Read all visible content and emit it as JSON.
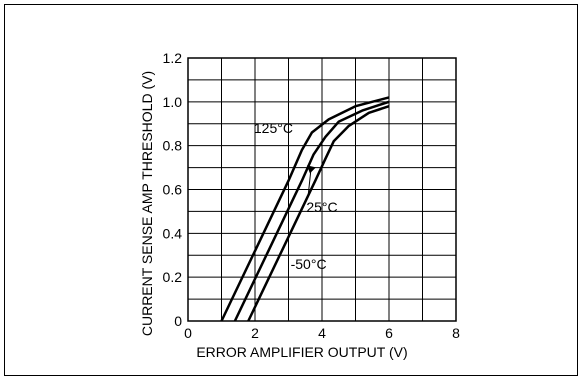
{
  "chart_data": {
    "type": "line",
    "title": "",
    "xlabel": "ERROR AMPLIFIER OUTPUT (V)",
    "ylabel": "CURRENT SENSE AMP THRESHOLD (V)",
    "xlim": [
      0,
      8
    ],
    "ylim": [
      0,
      1.2
    ],
    "x_ticks": [
      "0",
      "2",
      "4",
      "6",
      "8"
    ],
    "y_ticks": [
      "0",
      "0.2",
      "0.4",
      "0.6",
      "0.8",
      "1.0",
      "1.2"
    ],
    "grid": true,
    "series": [
      {
        "name": "125°C",
        "points": [
          [
            1.0,
            0
          ],
          [
            2.0,
            0.32
          ],
          [
            3.0,
            0.64
          ],
          [
            3.4,
            0.78
          ],
          [
            3.7,
            0.86
          ],
          [
            4.2,
            0.92
          ],
          [
            5.0,
            0.98
          ],
          [
            6.0,
            1.02
          ]
        ]
      },
      {
        "name": "25°C",
        "points": [
          [
            1.4,
            0
          ],
          [
            2.4,
            0.32
          ],
          [
            3.4,
            0.64
          ],
          [
            3.75,
            0.76
          ],
          [
            4.1,
            0.84
          ],
          [
            4.5,
            0.91
          ],
          [
            5.2,
            0.96
          ],
          [
            6.0,
            1.0
          ]
        ]
      },
      {
        "name": "-50°C",
        "points": [
          [
            1.8,
            0
          ],
          [
            2.8,
            0.32
          ],
          [
            3.8,
            0.64
          ],
          [
            4.1,
            0.74
          ],
          [
            4.35,
            0.82
          ],
          [
            4.8,
            0.89
          ],
          [
            5.4,
            0.95
          ],
          [
            6.0,
            0.98
          ]
        ]
      }
    ],
    "annotations": [
      {
        "text": "125°C",
        "x": 2.55,
        "y": 0.88
      },
      {
        "text": "25°C",
        "x": 4.0,
        "y": 0.52
      },
      {
        "text": "-50°C",
        "x": 3.6,
        "y": 0.26
      }
    ]
  }
}
